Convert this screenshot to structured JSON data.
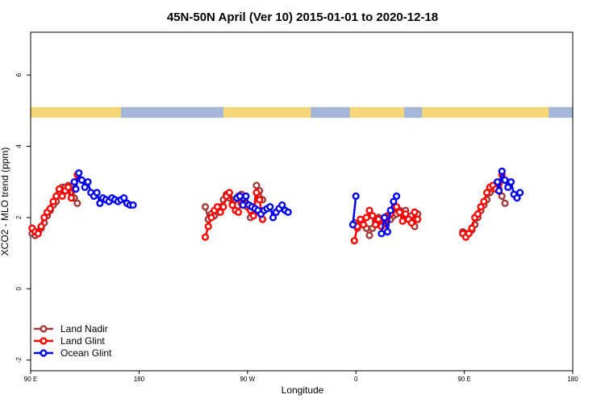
{
  "chart_data": {
    "type": "line",
    "title": "45N-50N April (Ver 10)   2015-01-01 to 2020-12-18",
    "xlabel": "Longitude",
    "ylabel": "XCO2 - MLO trend (ppm)",
    "xlim": [
      90,
      450
    ],
    "ylim": [
      -2.3,
      7.2
    ],
    "x_ticks": [
      {
        "value": 90,
        "label": "90 E"
      },
      {
        "value": 162,
        "label": "180"
      },
      {
        "value": 234,
        "label": "90 W"
      },
      {
        "value": 306,
        "label": "0"
      },
      {
        "value": 378,
        "label": "90 E"
      },
      {
        "value": 450,
        "label": "180"
      }
    ],
    "y_ticks": [
      {
        "value": -2,
        "label": "-2"
      },
      {
        "value": 0,
        "label": "0"
      },
      {
        "value": 2,
        "label": "2"
      },
      {
        "value": 4,
        "label": "4"
      },
      {
        "value": 6,
        "label": "6"
      }
    ],
    "grid": false,
    "legend_position": "bottom-left",
    "land_ocean_strip": {
      "y_range": [
        4.8,
        5.1
      ],
      "land_color": "#f5d77a",
      "ocean_color": "#a4b7d9",
      "ocean_lon_ranges": [
        [
          150,
          218
        ],
        [
          276,
          302
        ],
        [
          338,
          350
        ],
        [
          434,
          450
        ]
      ]
    },
    "series": [
      {
        "name": "Land Nadir",
        "color": "#a13a3a",
        "points": [
          [
            91,
            1.55
          ],
          [
            93,
            1.5
          ],
          [
            95,
            1.6
          ],
          [
            97,
            1.7
          ],
          [
            99,
            1.85
          ],
          [
            101,
            2.05
          ],
          [
            103,
            2.2
          ],
          [
            105,
            2.35
          ],
          [
            107,
            2.45
          ],
          [
            109,
            2.7
          ],
          [
            111,
            2.85
          ],
          [
            113,
            2.85
          ],
          [
            115,
            2.9
          ],
          [
            117,
            2.7
          ],
          [
            119,
            2.55
          ],
          [
            121,
            2.4
          ],
          [
            206,
            2.3
          ],
          [
            208,
            1.95
          ],
          [
            210,
            2.1
          ],
          [
            212,
            2.05
          ],
          [
            214,
            2.15
          ],
          [
            216,
            2.3
          ],
          [
            218,
            2.5
          ],
          [
            220,
            2.65
          ],
          [
            222,
            2.55
          ],
          [
            224,
            2.4
          ],
          [
            226,
            2.5
          ],
          [
            228,
            2.6
          ],
          [
            230,
            2.65
          ],
          [
            232,
            2.5
          ],
          [
            234,
            2.3
          ],
          [
            236,
            2.0
          ],
          [
            238,
            2.1
          ],
          [
            240,
            2.9
          ],
          [
            242,
            2.75
          ],
          [
            244,
            2.5
          ],
          [
            305,
            1.85
          ],
          [
            307,
            1.7
          ],
          [
            309,
            1.85
          ],
          [
            311,
            1.8
          ],
          [
            313,
            1.7
          ],
          [
            315,
            1.5
          ],
          [
            317,
            1.7
          ],
          [
            319,
            1.9
          ],
          [
            321,
            2.0
          ],
          [
            323,
            1.9
          ],
          [
            325,
            1.85
          ],
          [
            327,
            2.0
          ],
          [
            329,
            1.95
          ],
          [
            331,
            2.05
          ],
          [
            333,
            2.1
          ],
          [
            335,
            2.2
          ],
          [
            337,
            2.1
          ],
          [
            339,
            2.2
          ],
          [
            341,
            1.95
          ],
          [
            343,
            2.05
          ],
          [
            345,
            1.75
          ],
          [
            347,
            2.1
          ],
          [
            377,
            1.6
          ],
          [
            379,
            1.55
          ],
          [
            381,
            1.55
          ],
          [
            383,
            1.65
          ],
          [
            385,
            1.8
          ],
          [
            387,
            2.0
          ],
          [
            389,
            2.2
          ],
          [
            391,
            2.35
          ],
          [
            393,
            2.5
          ],
          [
            395,
            2.7
          ],
          [
            397,
            2.8
          ],
          [
            399,
            2.85
          ],
          [
            401,
            2.8
          ],
          [
            403,
            2.6
          ],
          [
            405,
            2.4
          ]
        ]
      },
      {
        "name": "Land Glint",
        "color": "#ff0000",
        "points": [
          [
            91,
            1.7
          ],
          [
            93,
            1.6
          ],
          [
            95,
            1.55
          ],
          [
            97,
            1.75
          ],
          [
            99,
            2.0
          ],
          [
            101,
            2.15
          ],
          [
            103,
            2.25
          ],
          [
            105,
            2.45
          ],
          [
            107,
            2.6
          ],
          [
            109,
            2.8
          ],
          [
            111,
            2.6
          ],
          [
            113,
            2.75
          ],
          [
            115,
            2.85
          ],
          [
            117,
            2.55
          ],
          [
            119,
            2.8
          ],
          [
            121,
            3.2
          ],
          [
            206,
            1.45
          ],
          [
            208,
            1.75
          ],
          [
            210,
            2.0
          ],
          [
            212,
            2.2
          ],
          [
            214,
            2.3
          ],
          [
            216,
            2.15
          ],
          [
            218,
            2.3
          ],
          [
            220,
            2.6
          ],
          [
            222,
            2.7
          ],
          [
            224,
            2.35
          ],
          [
            226,
            2.2
          ],
          [
            228,
            2.15
          ],
          [
            230,
            2.4
          ],
          [
            232,
            2.4
          ],
          [
            234,
            2.3
          ],
          [
            236,
            2.2
          ],
          [
            238,
            2.05
          ],
          [
            240,
            2.7
          ],
          [
            242,
            2.5
          ],
          [
            244,
            1.95
          ],
          [
            305,
            1.35
          ],
          [
            307,
            1.75
          ],
          [
            309,
            1.95
          ],
          [
            311,
            1.8
          ],
          [
            313,
            2.0
          ],
          [
            315,
            2.2
          ],
          [
            317,
            2.05
          ],
          [
            319,
            1.8
          ],
          [
            321,
            1.95
          ],
          [
            323,
            1.75
          ],
          [
            325,
            1.95
          ],
          [
            327,
            2.05
          ],
          [
            329,
            2.1
          ],
          [
            331,
            2.25
          ],
          [
            333,
            2.3
          ],
          [
            335,
            2.15
          ],
          [
            337,
            1.9
          ],
          [
            339,
            2.1
          ],
          [
            341,
            1.95
          ],
          [
            343,
            1.85
          ],
          [
            345,
            2.15
          ],
          [
            347,
            1.95
          ],
          [
            377,
            1.55
          ],
          [
            379,
            1.45
          ],
          [
            381,
            1.55
          ],
          [
            383,
            1.7
          ],
          [
            385,
            2.0
          ],
          [
            387,
            2.1
          ],
          [
            389,
            2.3
          ],
          [
            391,
            2.45
          ],
          [
            393,
            2.7
          ],
          [
            395,
            2.85
          ],
          [
            397,
            2.9
          ],
          [
            399,
            2.8
          ],
          [
            401,
            2.95
          ],
          [
            403,
            3.2
          ]
        ]
      },
      {
        "name": "Ocean Glint",
        "color": "#0000ee",
        "points": [
          [
            119,
            3.0
          ],
          [
            120,
            2.8
          ],
          [
            122,
            3.25
          ],
          [
            124,
            3.05
          ],
          [
            126,
            2.85
          ],
          [
            128,
            3.0
          ],
          [
            130,
            2.7
          ],
          [
            132,
            2.6
          ],
          [
            134,
            2.7
          ],
          [
            136,
            2.4
          ],
          [
            138,
            2.55
          ],
          [
            140,
            2.5
          ],
          [
            142,
            2.45
          ],
          [
            144,
            2.55
          ],
          [
            146,
            2.5
          ],
          [
            148,
            2.45
          ],
          [
            150,
            2.5
          ],
          [
            152,
            2.55
          ],
          [
            154,
            2.4
          ],
          [
            156,
            2.35
          ],
          [
            158,
            2.35
          ],
          [
            227,
            2.55
          ],
          [
            229,
            2.6
          ],
          [
            231,
            2.35
          ],
          [
            233,
            2.6
          ],
          [
            235,
            2.35
          ],
          [
            237,
            2.3
          ],
          [
            239,
            2.25
          ],
          [
            241,
            2.2
          ],
          [
            243,
            2.1
          ],
          [
            245,
            2.2
          ],
          [
            247,
            2.25
          ],
          [
            249,
            2.3
          ],
          [
            251,
            2.0
          ],
          [
            253,
            2.15
          ],
          [
            255,
            2.25
          ],
          [
            257,
            2.35
          ],
          [
            259,
            2.2
          ],
          [
            261,
            2.15
          ],
          [
            304,
            1.8
          ],
          [
            306,
            2.6
          ],
          [
            323,
            1.55
          ],
          [
            325,
            2.0
          ],
          [
            327,
            1.6
          ],
          [
            329,
            2.2
          ],
          [
            331,
            2.45
          ],
          [
            333,
            2.6
          ],
          [
            400,
            3.0
          ],
          [
            401,
            2.75
          ],
          [
            403,
            3.3
          ],
          [
            405,
            3.05
          ],
          [
            407,
            2.85
          ],
          [
            409,
            3.0
          ],
          [
            411,
            2.65
          ],
          [
            413,
            2.55
          ],
          [
            415,
            2.7
          ]
        ]
      }
    ]
  }
}
